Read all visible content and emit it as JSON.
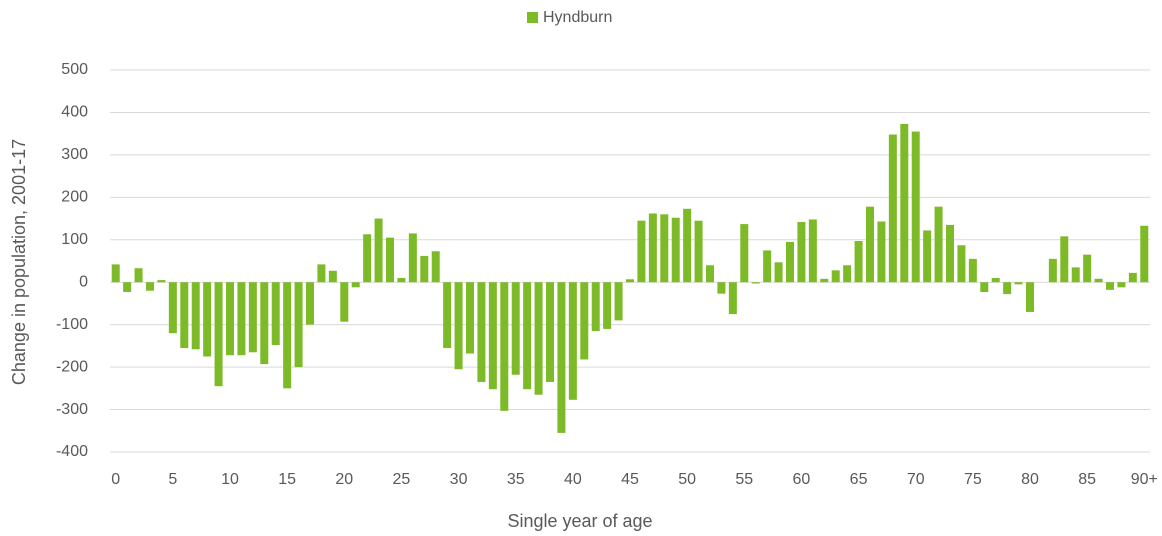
{
  "chart_data": {
    "type": "bar",
    "x_label": "Single year of age",
    "y_label": "Change in population, 2001-17",
    "categories": [
      "0",
      null,
      null,
      null,
      null,
      "5",
      null,
      null,
      null,
      null,
      "10",
      null,
      null,
      null,
      null,
      "15",
      null,
      null,
      null,
      null,
      "20",
      null,
      null,
      null,
      null,
      "25",
      null,
      null,
      null,
      null,
      "30",
      null,
      null,
      null,
      null,
      "35",
      null,
      null,
      null,
      null,
      "40",
      null,
      null,
      null,
      null,
      "45",
      null,
      null,
      null,
      null,
      "50",
      null,
      null,
      null,
      null,
      "55",
      null,
      null,
      null,
      null,
      "60",
      null,
      null,
      null,
      null,
      "65",
      null,
      null,
      null,
      null,
      "70",
      null,
      null,
      null,
      null,
      "75",
      null,
      null,
      null,
      null,
      "80",
      null,
      null,
      null,
      null,
      "85",
      null,
      null,
      null,
      null,
      "90+"
    ],
    "series": [
      {
        "name": "Hyndburn",
        "color": "#7dba28",
        "values": [
          42,
          -23,
          33,
          -20,
          5,
          -120,
          -155,
          -158,
          -175,
          -245,
          -172,
          -172,
          -165,
          -193,
          -148,
          -250,
          -200,
          -100,
          42,
          27,
          -93,
          -12,
          113,
          150,
          105,
          10,
          115,
          62,
          73,
          -155,
          -205,
          -168,
          -235,
          -252,
          -303,
          -218,
          -252,
          -265,
          -235,
          -355,
          -277,
          -182,
          -115,
          -110,
          -90,
          7,
          145,
          162,
          160,
          152,
          173,
          145,
          40,
          -27,
          -75,
          137,
          -3,
          75,
          47,
          95,
          142,
          148,
          8,
          28,
          40,
          97,
          178,
          143,
          348,
          373,
          355,
          122,
          178,
          135,
          87,
          55,
          -23,
          10,
          -28,
          -5,
          -70,
          0,
          55,
          108,
          35,
          65,
          8,
          -18,
          -12,
          22,
          133
        ]
      }
    ],
    "ylim": [
      -400,
      500
    ],
    "yticks": [
      -400,
      -300,
      -200,
      -100,
      0,
      100,
      200,
      300,
      400,
      500
    ],
    "grid": true,
    "legend": "top"
  }
}
